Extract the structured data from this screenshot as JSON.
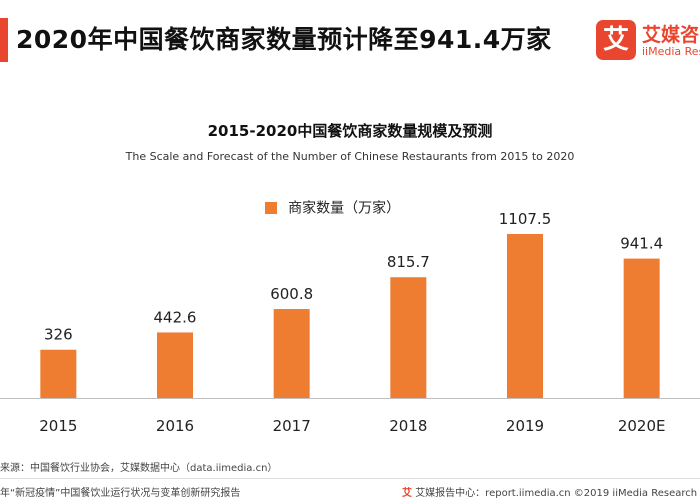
{
  "page": {
    "title": "2020年中国餐饮商家数量预计降至941.4万家"
  },
  "logo": {
    "mark": "艾",
    "name": "艾媒咨",
    "subtitle": "iiMedia Rese"
  },
  "chart_data": {
    "type": "bar",
    "title": "2015-2020中国餐饮商家数量规模及预测",
    "subtitle": "The Scale and Forecast of the Number of Chinese Restaurants from 2015 to 2020",
    "categories": [
      "2015",
      "2016",
      "2017",
      "2018",
      "2019",
      "2020E"
    ],
    "series": [
      {
        "name": "商家数量（万家）",
        "values": [
          326,
          442.6,
          600.8,
          815.7,
          1107.5,
          941.4
        ],
        "labels": [
          "326",
          "442.6",
          "600.8",
          "815.7",
          "1107.5",
          "941.4"
        ],
        "color": "#ee7d31"
      }
    ],
    "xlabel": "",
    "ylabel": "",
    "ylim": [
      0,
      1200
    ],
    "grid": false,
    "legend": "top-center"
  },
  "footer": {
    "source": "来源：中国餐饮行业协会，艾媒数据中心（data.iimedia.cn）",
    "report": "年“新冠疫情”中国餐饮业运行状况与变革创新研究报告",
    "site": "艾媒报告中心：report.iimedia.cn  ©2019  iiMedia Research",
    "site_icon": "艾"
  },
  "colors": {
    "accent": "#e8462f",
    "bar": "#ee7d31"
  }
}
